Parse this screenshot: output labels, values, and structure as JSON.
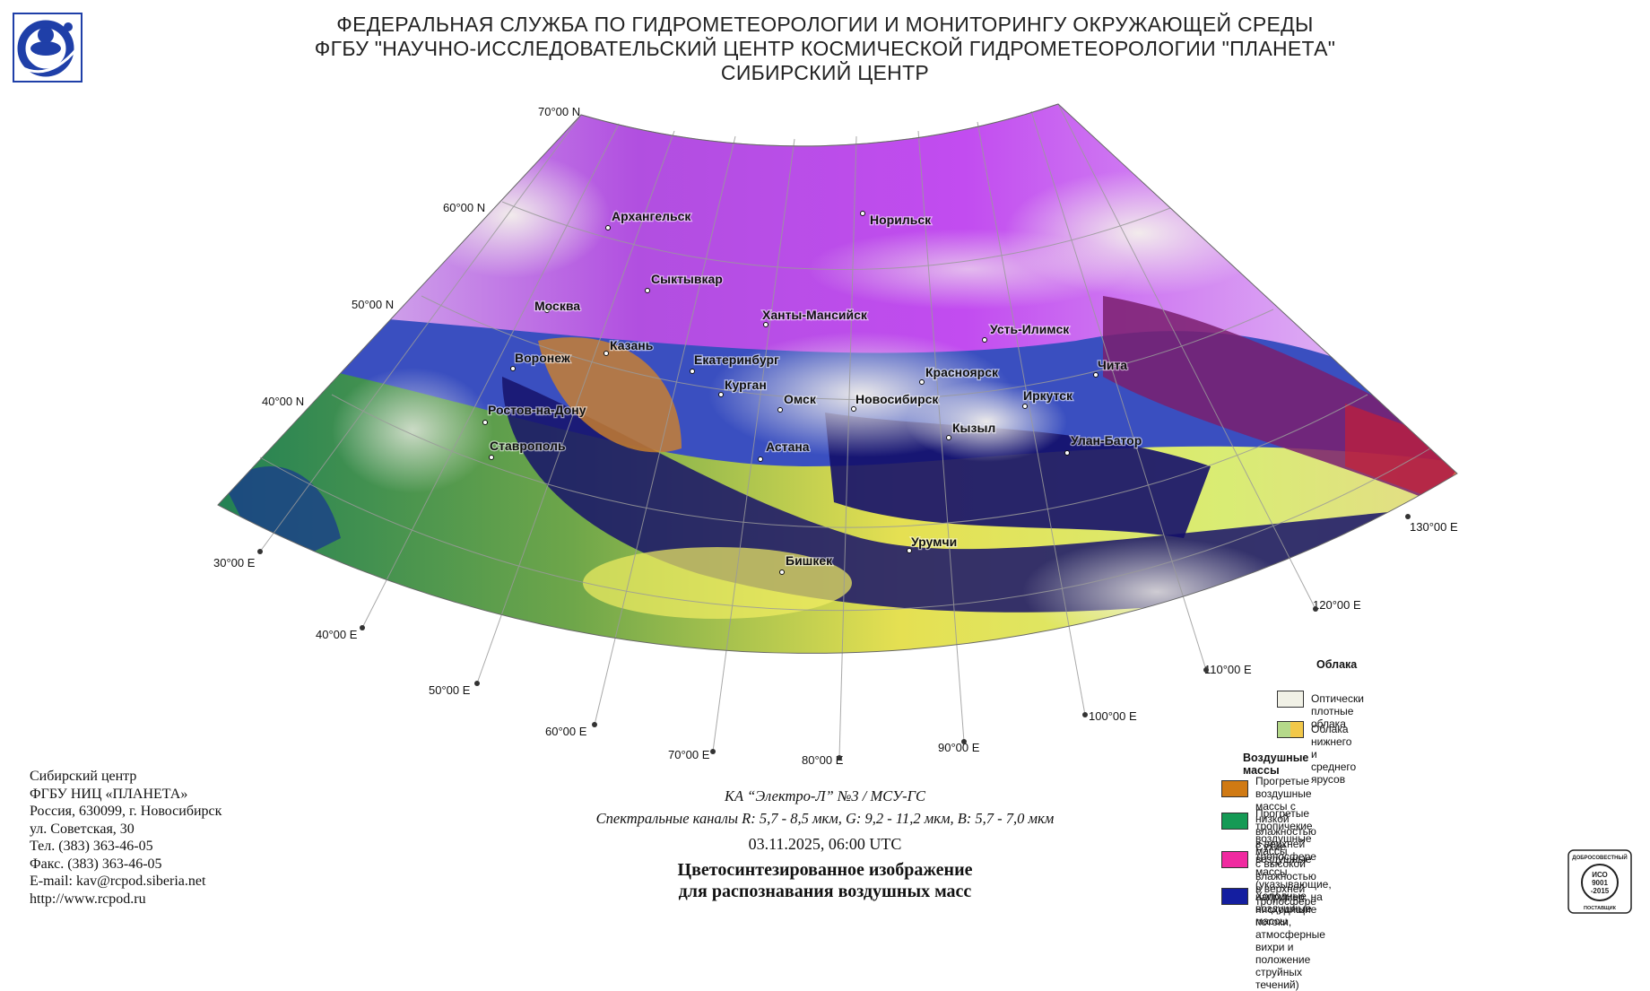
{
  "header": {
    "line1": "ФЕДЕРАЛЬНАЯ СЛУЖБА ПО ГИДРОМЕТЕОРОЛОГИИ И МОНИТОРИНГУ ОКРУЖАЮЩЕЙ СРЕДЫ",
    "line2": "ФГБУ \"НАУЧНО-ИССЛЕДОВАТЕЛЬСКИЙ ЦЕНТР КОСМИЧЕСКОЙ ГИДРОМЕТЕОРОЛОГИИ \"ПЛАНЕТА\"",
    "line3": "СИБИРСКИЙ ЦЕНТР"
  },
  "logo": {
    "icon": "planeta-logo",
    "color": "#1f3fa8"
  },
  "map": {
    "lat_labels": [
      "70°00 N",
      "60°00 N",
      "50°00 N",
      "40°00 N"
    ],
    "lon_labels": [
      "30°00 E",
      "40°00 E",
      "50°00 E",
      "60°00 E",
      "70°00 E",
      "80°00 E",
      "90°00 E",
      "100°00 E",
      "110°00 E",
      "120°00 E",
      "130°00 E"
    ],
    "cities": [
      "Архангельск",
      "Норильск",
      "Сыктывкар",
      "Москва",
      "Ханты-Мансийск",
      "Усть-Илимск",
      "Казань",
      "Воронеж",
      "Екатеринбург",
      "Красноярск",
      "Чита",
      "Курган",
      "Иркутск",
      "Омск",
      "Новосибирск",
      "Ростов-на-Дону",
      "Кызыл",
      "Улан-Батор",
      "Ставрополь",
      "Астана",
      "Урумчи",
      "Бишкек"
    ]
  },
  "legend": {
    "clouds_title": "Облака",
    "clouds": [
      {
        "label": "Оптически плотные облака",
        "colors": [
          "#f1f1e6"
        ]
      },
      {
        "label": "Облака нижнего и среднего ярусов",
        "colors": [
          "#b5d98a",
          "#f2c84a"
        ]
      }
    ],
    "air_title": "Воздушные массы",
    "air": [
      {
        "label_lines": [
          "Прогретые воздушные массы с низкой",
          "влажностью в верхней тропосфере"
        ],
        "color": "#d07a14"
      },
      {
        "label_lines": [
          "Прогретые тропичекие воздушные массы",
          "с высокой влажностью в верхней тропосфере"
        ],
        "color": "#159a55"
      },
      {
        "label_lines": [
          "Сухие воздушные массы (указывающие, например, на",
          "нисходящие потоки, атмосферные вихри и положение",
          "струйных течений)"
        ],
        "color": "#f02aa0"
      },
      {
        "label_lines": [
          "Холодные воздушные массы"
        ],
        "color": "#141ea0"
      }
    ]
  },
  "contacts": [
    "Сибирский центр",
    "ФГБУ НИЦ «ПЛАНЕТА»",
    "Россия, 630099, г. Новосибирск",
    "ул. Советская, 30",
    "Тел. (383) 363-46-05",
    "Факс. (383) 363-46-05",
    "E-mail: kav@rcpod.siberia.net",
    "http://www.rcpod.ru"
  ],
  "caption": {
    "satellite": "КА “Электро-Л” №3 / МСУ-ГС",
    "channels": "Спектральные каналы R: 5,7 - 8,5 мкм, G: 9,2 - 11,2 мкм, B: 5,7 - 7,0 мкм",
    "datetime": "03.11.2025, 06:00 UTC",
    "title_line1": "Цветосинтезированное изображение",
    "title_line2": "для распознавания воздушных масс"
  },
  "iso_badge": {
    "top": "ДОБРОСОВЕСТНЫЙ",
    "mid1": "ИСО",
    "mid2": "9001",
    "mid3": "-2015",
    "bottom": "ПОСТАВЩИК"
  }
}
